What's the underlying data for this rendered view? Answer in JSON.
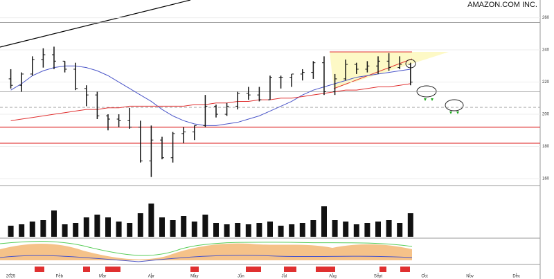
{
  "chart_data": {
    "type": "ohlc",
    "title": "AMAZON.COM INC.",
    "x": [
      0,
      1,
      2,
      3,
      4,
      5,
      6,
      7,
      8,
      9,
      10,
      11,
      12,
      13,
      14,
      15,
      16,
      17,
      18,
      19,
      20,
      21,
      22,
      23,
      24,
      25,
      26,
      27,
      28,
      29,
      30,
      31,
      32,
      33,
      34,
      35,
      36,
      37
    ],
    "open": [
      222,
      218,
      225,
      234,
      237,
      233,
      228,
      216,
      212,
      199,
      197,
      196,
      192,
      171,
      184,
      173,
      188,
      189,
      193,
      205,
      200,
      205,
      213,
      212,
      209,
      223,
      223,
      225,
      226,
      232,
      214,
      222,
      231,
      228,
      230,
      233,
      229,
      231
    ],
    "high": [
      228,
      226,
      236,
      241,
      242,
      233,
      232,
      218,
      214,
      200,
      200,
      204,
      196,
      193,
      186,
      189,
      192,
      193,
      212,
      206,
      207,
      214,
      217,
      217,
      224,
      224,
      225,
      228,
      233,
      236,
      225,
      234,
      232,
      233,
      236,
      238,
      236,
      232
    ],
    "low": [
      216,
      214,
      224,
      229,
      228,
      226,
      215,
      205,
      197,
      190,
      192,
      191,
      170,
      161,
      172,
      170,
      182,
      184,
      192,
      198,
      199,
      203,
      209,
      208,
      209,
      216,
      217,
      221,
      222,
      212,
      212,
      221,
      225,
      226,
      225,
      227,
      228,
      218
    ],
    "close": [
      218,
      225,
      234,
      237,
      233,
      228,
      216,
      212,
      199,
      197,
      196,
      192,
      171,
      184,
      173,
      188,
      189,
      193,
      205,
      200,
      205,
      213,
      212,
      209,
      223,
      223,
      225,
      226,
      232,
      214,
      222,
      231,
      228,
      230,
      233,
      229,
      231,
      220
    ],
    "color": "#111111",
    "series": [
      {
        "color": "#4a55c8",
        "values": [
          215,
          219,
          224,
          227,
          229,
          230,
          230,
          229,
          227,
          224,
          220,
          216,
          212,
          208,
          203,
          199,
          196,
          194,
          193,
          193,
          194,
          195,
          197,
          199,
          202,
          205,
          208,
          212,
          215,
          217,
          219,
          221,
          223,
          224,
          225,
          226,
          227,
          228
        ]
      },
      {
        "color": "#e03030",
        "values": [
          196,
          197,
          198,
          199,
          200,
          201,
          202,
          203,
          203,
          204,
          204,
          205,
          205,
          205,
          205,
          205,
          205,
          206,
          206,
          207,
          207,
          208,
          208,
          209,
          209,
          210,
          210,
          211,
          212,
          213,
          214,
          215,
          215,
          216,
          217,
          217,
          218,
          219
        ]
      }
    ],
    "volume": [
      40,
      45,
      55,
      60,
      95,
      45,
      50,
      70,
      80,
      70,
      55,
      50,
      85,
      120,
      70,
      60,
      75,
      55,
      80,
      50,
      45,
      50,
      45,
      50,
      55,
      40,
      45,
      50,
      60,
      110,
      60,
      55,
      45,
      50,
      55,
      60,
      50,
      85
    ],
    "volume_color": "#111111",
    "vlim": [
      0,
      160
    ],
    "levels": [
      257,
      214,
      204.3,
      192,
      182
    ],
    "xlim": [
      -1,
      49
    ],
    "xticks": [
      {
        "value": 0,
        "label": "2025"
      },
      {
        "value": 4.5,
        "label": "Feb"
      },
      {
        "value": 8.5,
        "label": "Mar"
      },
      {
        "value": 13,
        "label": "Apr"
      },
      {
        "value": 17,
        "label": "May"
      },
      {
        "value": 21.3,
        "label": "Jun"
      },
      {
        "value": 25.3,
        "label": "Jul"
      },
      {
        "value": 29.8,
        "label": "Aug"
      },
      {
        "value": 34,
        "label": "Sept"
      },
      {
        "value": 38.3,
        "label": "Oct"
      },
      {
        "value": 42.5,
        "label": "Nov"
      },
      {
        "value": 46.8,
        "label": "Dec"
      }
    ],
    "ylim": [
      157,
      271
    ],
    "yticks": [
      160,
      180,
      200,
      220,
      240,
      260
    ],
    "grid": true
  }
}
